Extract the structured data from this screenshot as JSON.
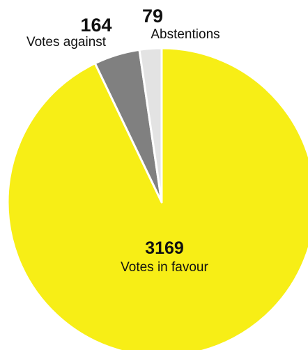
{
  "chart_data": {
    "type": "pie",
    "slices": [
      {
        "label": "Votes in favour",
        "value": 3169,
        "color": "#f7ee16"
      },
      {
        "label": "Votes against",
        "value": 164,
        "color": "#808080"
      },
      {
        "label": "Abstentions",
        "value": 79,
        "color": "#e3e3e3"
      }
    ]
  }
}
